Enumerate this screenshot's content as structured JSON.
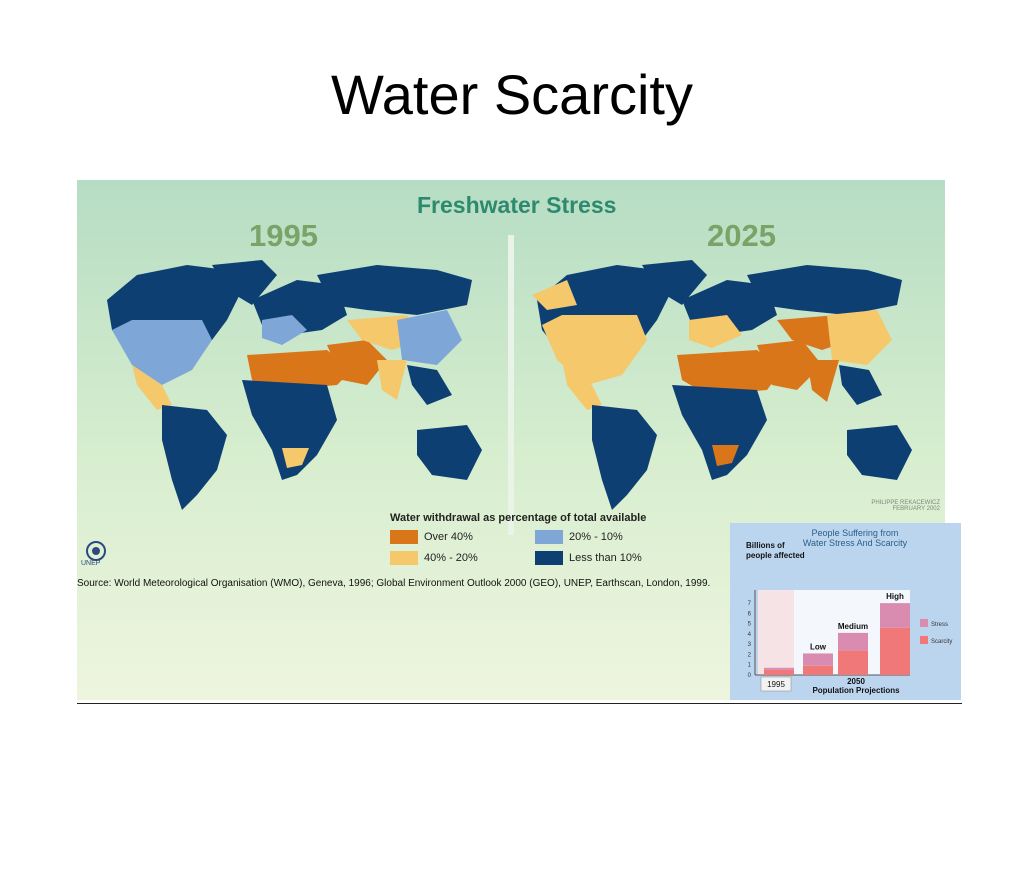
{
  "slide": {
    "title": "Water Scarcity"
  },
  "figure": {
    "title": "Freshwater Stress",
    "years": [
      "1995",
      "2025"
    ],
    "credit": "PHILIPPE REKACEWICZ FEBRUARY 2002",
    "organization": "UNEP",
    "source": "Source: World Meteorological Organisation (WMO), Geneva, 1996; Global Environment Outlook 2000 (GEO), UNEP, Earthscan, London, 1999.",
    "legend": {
      "title": "Water withdrawal as percentage of total available",
      "items": [
        {
          "label": "Over 40%",
          "color": "#d9761a"
        },
        {
          "label": "20% - 10%",
          "color": "#7ea7d8"
        },
        {
          "label": "40% - 20%",
          "color": "#f5c86c"
        },
        {
          "label": "Less than 10%",
          "color": "#0d3f73"
        }
      ]
    }
  },
  "inset": {
    "title_line1": "People Suffering from",
    "title_line2": "Water Stress And Scarcity",
    "colors": {
      "stress": "#d98cb0",
      "scarcity": "#f07878"
    }
  },
  "chart_data": {
    "type": "bar",
    "stacked": true,
    "ylabel": "Billions of people affected",
    "yticks": [
      0,
      1,
      2,
      3,
      4,
      5,
      6,
      7
    ],
    "ylim": [
      0,
      7.5
    ],
    "categories": [
      "1995",
      "Low",
      "Medium",
      "High"
    ],
    "xlabel_groups": [
      "1995",
      "2050"
    ],
    "xlabel": "Population Projections",
    "legend": [
      "Stress",
      "Scarcity"
    ],
    "series": [
      {
        "name": "Scarcity",
        "values": [
          0.5,
          0.9,
          2.4,
          4.6
        ]
      },
      {
        "name": "Stress",
        "values": [
          0.2,
          1.2,
          1.7,
          2.4
        ]
      }
    ]
  }
}
